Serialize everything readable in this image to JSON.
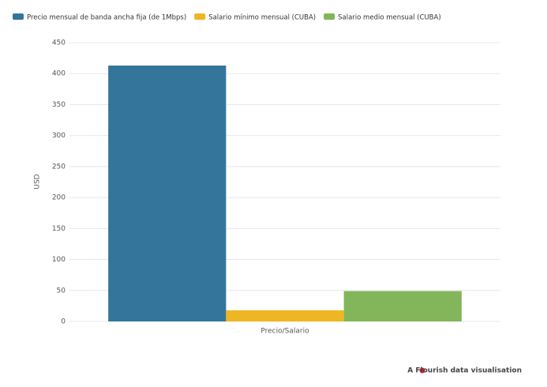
{
  "chart_data": {
    "type": "bar",
    "categories": [
      "Precio/Salario"
    ],
    "series": [
      {
        "name": "Precio mensual de banda ancha fija (de 1Mbps)",
        "color": "#34759c",
        "values": [
          413
        ]
      },
      {
        "name": "Salario mínimo mensual (CUBA)",
        "color": "#efb623",
        "values": [
          18
        ]
      },
      {
        "name": "Salario medio mensual (CUBA)",
        "color": "#83b65a",
        "values": [
          49
        ]
      }
    ],
    "y_label": "USD",
    "ylim": [
      0,
      450
    ],
    "yticks": [
      0,
      50,
      100,
      150,
      200,
      250,
      300,
      350,
      400,
      450
    ],
    "grid": true,
    "legend": "top-left",
    "footer": "A Flourish data visualisation"
  }
}
